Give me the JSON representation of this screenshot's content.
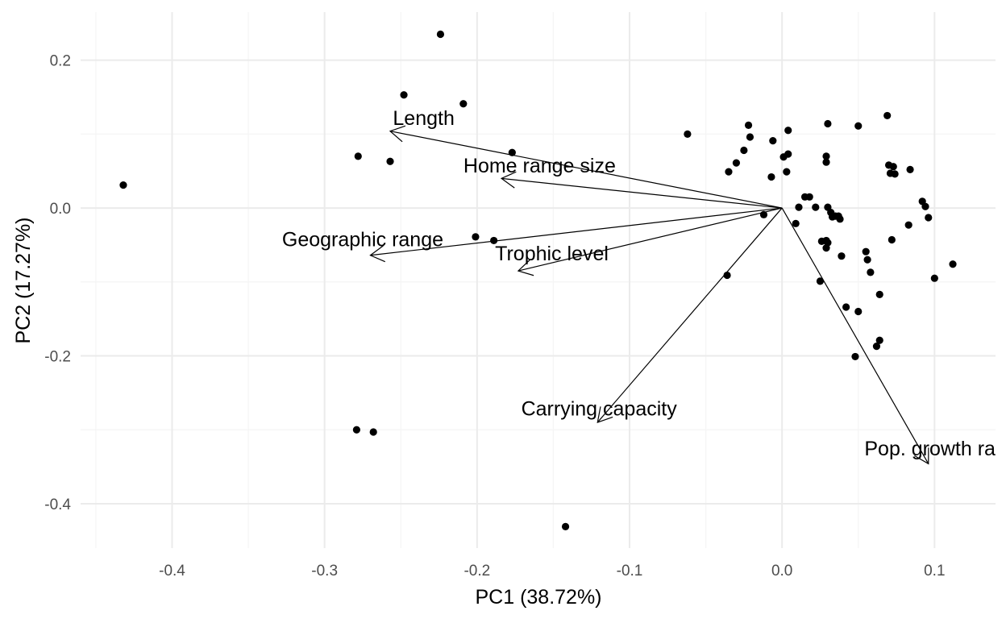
{
  "chart_data": {
    "type": "scatter",
    "title": "",
    "xlabel": "PC1 (38.72%)",
    "ylabel": "PC2 (17.27%)",
    "xlim": [
      -0.46,
      0.14
    ],
    "ylim": [
      -0.46,
      0.265
    ],
    "x_ticks": [
      -0.4,
      -0.3,
      -0.2,
      -0.1,
      0.0,
      0.1
    ],
    "x_tick_labels": [
      "-0.4",
      "-0.3",
      "-0.2",
      "-0.1",
      "0.0",
      "0.1"
    ],
    "y_ticks": [
      0.2,
      0.0,
      -0.2,
      -0.4
    ],
    "y_tick_labels": [
      "0.2",
      "0.0",
      "-0.2",
      "-0.4"
    ],
    "grid": true,
    "colors": {
      "point": "#000000",
      "arrow": "#000000",
      "grid_major": "#ebebeb",
      "grid_minor": "#f5f5f5"
    },
    "points": [
      {
        "x": -0.432,
        "y": 0.031
      },
      {
        "x": -0.224,
        "y": 0.235
      },
      {
        "x": -0.248,
        "y": 0.153
      },
      {
        "x": -0.209,
        "y": 0.141
      },
      {
        "x": -0.278,
        "y": 0.07
      },
      {
        "x": -0.257,
        "y": 0.063
      },
      {
        "x": -0.177,
        "y": 0.075
      },
      {
        "x": -0.201,
        "y": -0.039
      },
      {
        "x": -0.189,
        "y": -0.044
      },
      {
        "x": -0.279,
        "y": -0.3
      },
      {
        "x": -0.268,
        "y": -0.303
      },
      {
        "x": -0.142,
        "y": -0.431
      },
      {
        "x": -0.062,
        "y": 0.1
      },
      {
        "x": -0.036,
        "y": -0.091
      },
      {
        "x": -0.022,
        "y": 0.112
      },
      {
        "x": -0.021,
        "y": 0.096
      },
      {
        "x": -0.025,
        "y": 0.078
      },
      {
        "x": -0.03,
        "y": 0.061
      },
      {
        "x": -0.035,
        "y": 0.049
      },
      {
        "x": -0.006,
        "y": 0.091
      },
      {
        "x": -0.007,
        "y": 0.042
      },
      {
        "x": -0.012,
        "y": -0.009
      },
      {
        "x": 0.004,
        "y": 0.105
      },
      {
        "x": 0.004,
        "y": 0.073
      },
      {
        "x": 0.001,
        "y": 0.069
      },
      {
        "x": 0.003,
        "y": 0.049
      },
      {
        "x": 0.03,
        "y": 0.114
      },
      {
        "x": 0.029,
        "y": 0.07
      },
      {
        "x": 0.029,
        "y": 0.062
      },
      {
        "x": 0.05,
        "y": 0.111
      },
      {
        "x": 0.069,
        "y": 0.125
      },
      {
        "x": 0.07,
        "y": 0.058
      },
      {
        "x": 0.073,
        "y": 0.056
      },
      {
        "x": 0.071,
        "y": 0.047
      },
      {
        "x": 0.074,
        "y": 0.046
      },
      {
        "x": 0.084,
        "y": 0.052
      },
      {
        "x": 0.015,
        "y": 0.015
      },
      {
        "x": 0.018,
        "y": 0.015
      },
      {
        "x": 0.011,
        "y": 0.001
      },
      {
        "x": 0.022,
        "y": 0.001
      },
      {
        "x": 0.03,
        "y": 0.001
      },
      {
        "x": 0.032,
        "y": -0.006
      },
      {
        "x": 0.035,
        "y": -0.011
      },
      {
        "x": 0.037,
        "y": -0.011
      },
      {
        "x": 0.038,
        "y": -0.015
      },
      {
        "x": 0.033,
        "y": -0.012
      },
      {
        "x": 0.009,
        "y": -0.021
      },
      {
        "x": 0.026,
        "y": -0.045
      },
      {
        "x": 0.029,
        "y": -0.044
      },
      {
        "x": 0.03,
        "y": -0.047
      },
      {
        "x": 0.029,
        "y": -0.054
      },
      {
        "x": 0.039,
        "y": -0.065
      },
      {
        "x": 0.025,
        "y": -0.099
      },
      {
        "x": 0.055,
        "y": -0.059
      },
      {
        "x": 0.056,
        "y": -0.07
      },
      {
        "x": 0.058,
        "y": -0.087
      },
      {
        "x": 0.072,
        "y": -0.043
      },
      {
        "x": 0.083,
        "y": -0.023
      },
      {
        "x": 0.092,
        "y": 0.009
      },
      {
        "x": 0.094,
        "y": 0.002
      },
      {
        "x": 0.096,
        "y": -0.013
      },
      {
        "x": 0.112,
        "y": -0.076
      },
      {
        "x": 0.1,
        "y": -0.095
      },
      {
        "x": 0.064,
        "y": -0.117
      },
      {
        "x": 0.042,
        "y": -0.134
      },
      {
        "x": 0.05,
        "y": -0.14
      },
      {
        "x": 0.064,
        "y": -0.179
      },
      {
        "x": 0.062,
        "y": -0.187
      },
      {
        "x": 0.048,
        "y": -0.201
      }
    ],
    "loadings": [
      {
        "name": "Length",
        "x": -0.257,
        "y": 0.104,
        "label_x": -0.235,
        "label_y": 0.122
      },
      {
        "name": "Home range size",
        "x": -0.184,
        "y": 0.04,
        "label_x": -0.159,
        "label_y": 0.058
      },
      {
        "name": "Geographic range",
        "x": -0.27,
        "y": -0.064,
        "label_x": -0.275,
        "label_y": -0.042
      },
      {
        "name": "Trophic level",
        "x": -0.173,
        "y": -0.085,
        "label_x": -0.151,
        "label_y": -0.061
      },
      {
        "name": "Carrying capacity",
        "x": -0.121,
        "y": -0.29,
        "label_x": -0.12,
        "label_y": -0.271
      },
      {
        "name": "Pop. growth ra",
        "x": 0.096,
        "y": -0.346,
        "label_x": 0.097,
        "label_y": -0.325
      }
    ]
  }
}
